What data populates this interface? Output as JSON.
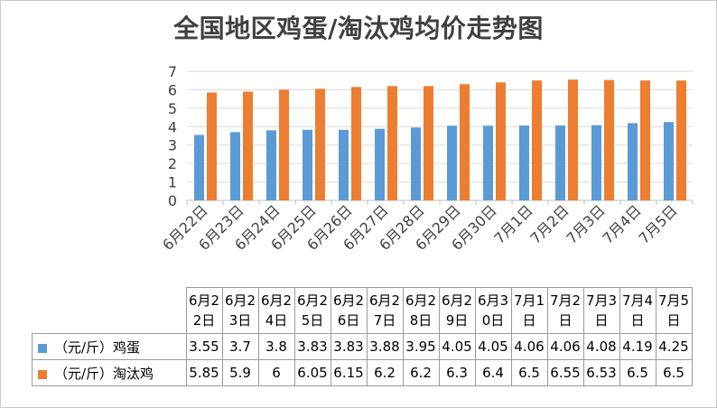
{
  "title": "全国地区鸡蛋/淘汰鸡均价走势图",
  "table": {
    "header_labels": [
      "6月2\n2日",
      "6月2\n3日",
      "6月2\n4日",
      "6月2\n5日",
      "6月2\n6日",
      "6月2\n7日",
      "6月2\n8日",
      "6月2\n9日",
      "6月3\n0日",
      "7月1\n日",
      "7月2\n日",
      "7月3\n日",
      "7月4\n日",
      "7月5\n日"
    ],
    "rows": [
      {
        "label": "（元/斤）鸡蛋",
        "values": [
          "3.55",
          "3.7",
          "3.8",
          "3.83",
          "3.83",
          "3.88",
          "3.95",
          "4.05",
          "4.05",
          "4.06",
          "4.06",
          "4.08",
          "4.19",
          "4.25"
        ]
      },
      {
        "label": "（元/斤）淘汰鸡",
        "values": [
          "5.85",
          "5.9",
          "6",
          "6.05",
          "6.15",
          "6.2",
          "6.2",
          "6.3",
          "6.4",
          "6.5",
          "6.55",
          "6.53",
          "6.5",
          "6.5"
        ]
      }
    ]
  },
  "chart_data": {
    "type": "bar",
    "title": "全国地区鸡蛋/淘汰鸡均价走势图",
    "categories": [
      "6月22日",
      "6月23日",
      "6月24日",
      "6月25日",
      "6月26日",
      "6月27日",
      "6月28日",
      "6月29日",
      "6月30日",
      "7月1日",
      "7月2日",
      "7月3日",
      "7月4日",
      "7月5日"
    ],
    "series": [
      {
        "name": "（元/斤）鸡蛋",
        "color": "#5b9bd5",
        "values": [
          3.55,
          3.7,
          3.8,
          3.83,
          3.83,
          3.88,
          3.95,
          4.05,
          4.05,
          4.06,
          4.06,
          4.08,
          4.19,
          4.25
        ]
      },
      {
        "name": "（元/斤）淘汰鸡",
        "color": "#ed7d31",
        "values": [
          5.85,
          5.9,
          6,
          6.05,
          6.15,
          6.2,
          6.2,
          6.3,
          6.4,
          6.5,
          6.55,
          6.53,
          6.5,
          6.5
        ]
      }
    ],
    "yticks": [
      "0",
      "1",
      "2",
      "3",
      "4",
      "5",
      "6",
      "7"
    ],
    "ylim": [
      0,
      7
    ],
    "grid": true,
    "legend": "bottom-table"
  }
}
